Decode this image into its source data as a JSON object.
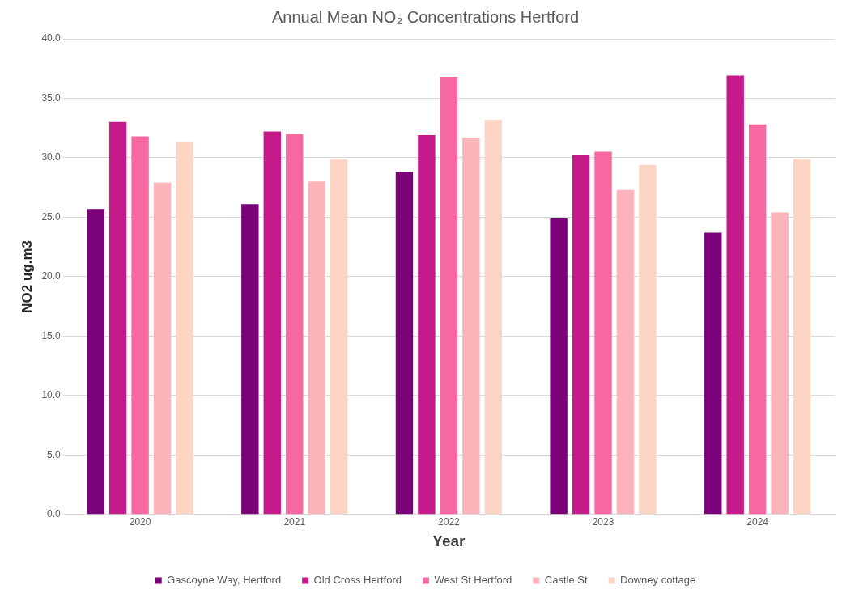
{
  "chart_data": {
    "type": "bar",
    "title": "Annual Mean NO₂ Concentrations Hertford",
    "xlabel": "Year",
    "ylabel": "NO2 ug.m3",
    "categories": [
      "2020",
      "2021",
      "2022",
      "2023",
      "2024"
    ],
    "series": [
      {
        "name": "Gascoyne Way, Hertford",
        "color": "#7a0177",
        "values": [
          25.7,
          26.1,
          28.8,
          24.9,
          23.7
        ]
      },
      {
        "name": "Old Cross Hertford",
        "color": "#c51b8a",
        "values": [
          33.0,
          32.2,
          31.9,
          30.2,
          36.9
        ]
      },
      {
        "name": "West St Hertford",
        "color": "#f768a1",
        "values": [
          31.8,
          32.0,
          36.8,
          30.5,
          32.8
        ]
      },
      {
        "name": "Castle St",
        "color": "#fbb4b9",
        "values": [
          27.9,
          28.0,
          31.7,
          27.3,
          25.4
        ]
      },
      {
        "name": "Downey cottage",
        "color": "#fcd5c4",
        "values": [
          31.3,
          29.9,
          33.2,
          29.4,
          29.9
        ]
      }
    ],
    "ylim": [
      0,
      40
    ],
    "yticks": [
      {
        "value": 0,
        "label": "0.0"
      },
      {
        "value": 5,
        "label": "5.0"
      },
      {
        "value": 10,
        "label": "10.0"
      },
      {
        "value": 15,
        "label": "15.0"
      },
      {
        "value": 20,
        "label": "20.0"
      },
      {
        "value": 25,
        "label": "25.0"
      },
      {
        "value": 30,
        "label": "30.0"
      },
      {
        "value": 35,
        "label": "35.0"
      },
      {
        "value": 40,
        "label": "40.0"
      }
    ],
    "grid": "y",
    "legend": "bottom"
  }
}
